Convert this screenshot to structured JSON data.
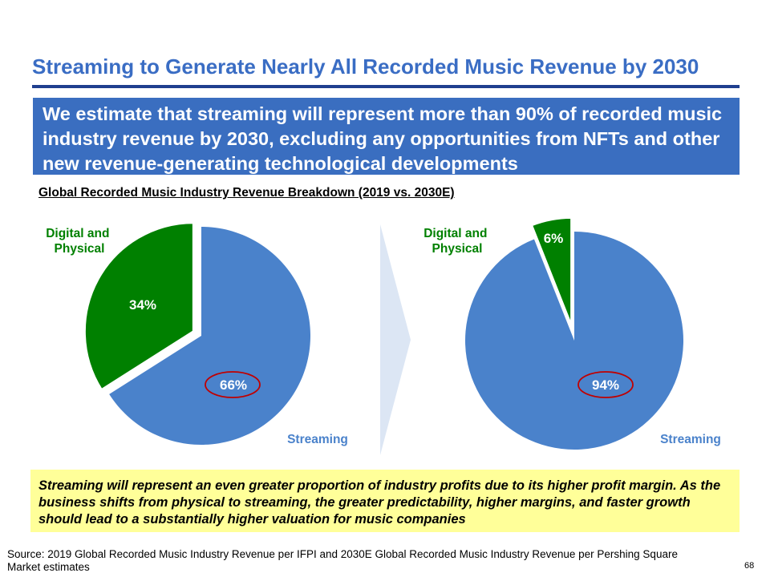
{
  "title": "Streaming to Generate Nearly All Recorded Music Revenue by 2030",
  "banner_text": "We estimate that streaming will represent more than 90% of recorded music industry revenue by 2030, excluding any opportunities from NFTs and other new revenue-generating technological developments",
  "colors": {
    "streaming": "#4A82CB",
    "digital_physical": "#008000",
    "title": "#3A6DC4",
    "banner": "#3A6EC0",
    "callout": "#FFFF99",
    "highlight_circle": "#C00000",
    "arrow": "#DCE6F4"
  },
  "chart_data": [
    {
      "type": "pie",
      "title": "Global Recorded Music Industry Revenue Breakdown (2019 vs. 2030E)",
      "period": "2019",
      "slices": [
        {
          "label": "Streaming",
          "value": 66,
          "value_label": "66%"
        },
        {
          "label": "Digital and Physical",
          "value": 34,
          "value_label": "34%"
        }
      ]
    },
    {
      "type": "pie",
      "title": "Global Recorded Music Industry Revenue Breakdown (2019 vs. 2030E)",
      "period": "2030E",
      "slices": [
        {
          "label": "Streaming",
          "value": 94,
          "value_label": "94%"
        },
        {
          "label": "Digital and Physical",
          "value": 6,
          "value_label": "6%"
        }
      ]
    }
  ],
  "labels": {
    "digital_physical_line1": "Digital and",
    "digital_physical_line2": "Physical",
    "streaming": "Streaming"
  },
  "callout_text": "Streaming will represent an even greater proportion of industry profits due to its higher profit margin. As the business shifts from physical to streaming, the greater predictability, higher margins, and faster growth should lead to a substantially higher valuation for music companies",
  "source_text": "Source: 2019 Global Recorded Music Industry Revenue per IFPI and 2030E Global Recorded Music Industry Revenue per Pershing Square Market estimates",
  "page_number": "68"
}
